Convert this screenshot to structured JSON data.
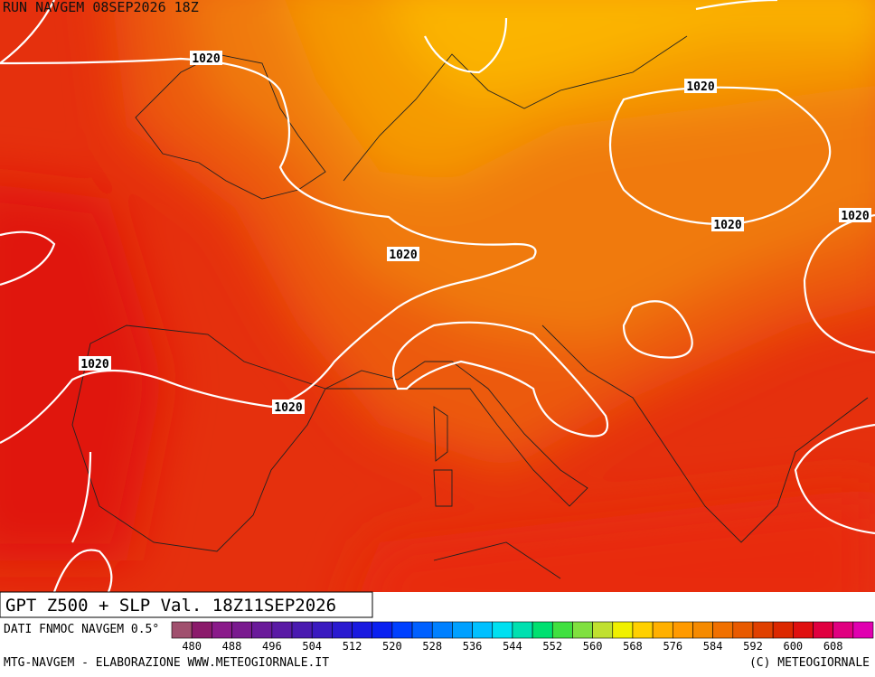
{
  "header": {
    "run": "RUN NAVGEM 08SEP2026 18Z"
  },
  "isobars": [
    {
      "label": "1020"
    },
    {
      "label": "1020"
    },
    {
      "label": "1020"
    },
    {
      "label": "1020"
    },
    {
      "label": "1020"
    },
    {
      "label": "1020"
    },
    {
      "label": "1020"
    }
  ],
  "title": "GPT Z500 + SLP Val. 18Z11SEP2026",
  "source": "DATI FNMOC NAVGEM 0.5°",
  "colorbar": {
    "ticks": [
      480,
      488,
      496,
      504,
      512,
      520,
      528,
      536,
      544,
      552,
      560,
      568,
      576,
      584,
      592,
      600,
      608
    ],
    "colors": [
      "#a0506e",
      "#8b1a6b",
      "#8a1a8a",
      "#7a1a8f",
      "#6a1a9a",
      "#5a1aa5",
      "#4a1ab0",
      "#3a1ac0",
      "#2a1ad0",
      "#1a1ae0",
      "#0a20f0",
      "#0040ff",
      "#0060ff",
      "#0080ff",
      "#00a0ff",
      "#00c0ff",
      "#00e0f0",
      "#00e0b0",
      "#00e070",
      "#40e040",
      "#80e040",
      "#c0e030",
      "#f0f000",
      "#ffd000",
      "#ffb000",
      "#ff9a00",
      "#f58a00",
      "#f07000",
      "#e85a00",
      "#e04000",
      "#dc2800",
      "#e01010",
      "#e00040",
      "#e00080",
      "#e000b0"
    ]
  },
  "footer": {
    "left": "MTG-NAVGEM - ELABORAZIONE WWW.METEOGIORNALE.IT",
    "right": "(C) METEOGIORNALE"
  }
}
